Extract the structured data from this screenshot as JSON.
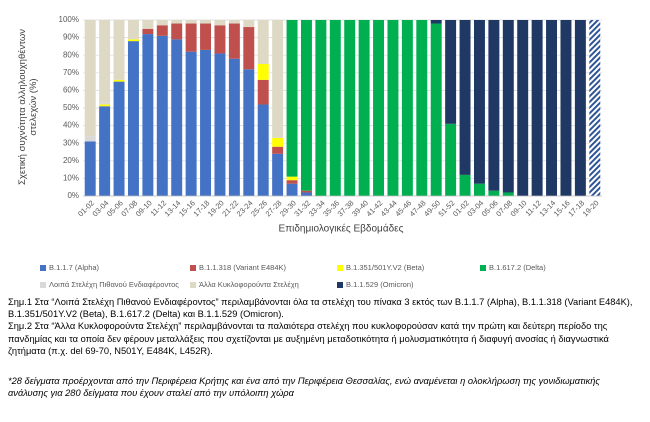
{
  "chart_data": {
    "type": "stacked_bar",
    "y_label": "Σχετική συχνότητα αλληλουχηθέντων στελεχών (%)",
    "x_label": "Επιδημιολογικές Εβδομάδες",
    "categories": [
      "01-02",
      "03-04",
      "05-06",
      "07-08",
      "09-10",
      "11-12",
      "13-14",
      "15-16",
      "17-18",
      "19-20",
      "21-22",
      "23-24",
      "25-26",
      "27-28",
      "29-30",
      "31-32",
      "33-34",
      "35-36",
      "37-38",
      "39-40",
      "41-42",
      "43-44",
      "45-46",
      "47-48",
      "49-50",
      "51-52",
      "01-02",
      "03-04",
      "05-06",
      "07-08",
      "09-10",
      "11-12",
      "13-14",
      "15-16",
      "17-18",
      "19-20"
    ],
    "series": [
      {
        "name": "B.1.1.7 (Alpha)",
        "color": "#4472c4",
        "values": [
          31,
          51,
          65,
          88,
          92,
          91,
          89,
          82,
          83,
          81,
          78,
          72,
          52,
          24,
          7,
          2,
          0,
          0,
          0,
          0,
          0,
          0,
          0,
          0,
          0,
          0,
          0,
          0,
          0,
          0,
          0,
          0,
          0,
          0,
          0,
          0
        ]
      },
      {
        "name": "B.1.1.318 (Variant E484K)",
        "color": "#c0504d",
        "values": [
          0,
          0,
          0,
          0,
          3,
          6,
          9,
          16,
          15,
          16,
          20,
          24,
          14,
          4,
          2,
          1,
          0,
          0,
          0,
          0,
          0,
          0,
          0,
          0,
          0,
          0,
          0,
          0,
          0,
          0,
          0,
          0,
          0,
          0,
          0,
          0
        ]
      },
      {
        "name": "B.1.351/501Y.V2 (Beta)",
        "color": "#ffff00",
        "values": [
          0,
          1,
          1,
          1,
          0,
          0,
          0,
          0,
          0,
          0,
          0,
          0,
          9,
          5,
          2,
          0,
          0,
          0,
          0,
          0,
          0,
          0,
          0,
          0,
          0,
          0,
          0,
          0,
          0,
          0,
          0,
          0,
          0,
          0,
          0,
          0
        ]
      },
      {
        "name": "B.1.617.2 (Delta)",
        "color": "#00b050",
        "values": [
          0,
          0,
          0,
          0,
          0,
          0,
          0,
          0,
          0,
          0,
          0,
          0,
          0,
          0,
          89,
          97,
          100,
          100,
          100,
          100,
          100,
          100,
          100,
          100,
          98,
          41,
          12,
          7,
          3,
          2,
          0,
          0,
          0,
          0,
          0,
          0
        ]
      },
      {
        "name": "Λοιπά Στελέχη Πιθανού Ενδιαφέροντος",
        "color": "#d9d9d9",
        "values": [
          3,
          1,
          0,
          0,
          0,
          0,
          0,
          0,
          0,
          0,
          0,
          0,
          0,
          0,
          0,
          0,
          0,
          0,
          0,
          0,
          0,
          0,
          0,
          0,
          0,
          0,
          0,
          0,
          0,
          0,
          0,
          0,
          0,
          0,
          0,
          0
        ]
      },
      {
        "name": "Άλλα Κυκλοφορούντα Στελέχη",
        "color": "#ddd9c4",
        "values": [
          66,
          47,
          34,
          11,
          5,
          3,
          2,
          2,
          2,
          3,
          2,
          4,
          25,
          67,
          0,
          0,
          0,
          0,
          0,
          0,
          0,
          0,
          0,
          0,
          0,
          0,
          0,
          0,
          0,
          0,
          0,
          0,
          0,
          0,
          0,
          0
        ]
      },
      {
        "name": "B.1.1.529 (Omicron)",
        "color": "#1f3864",
        "values": [
          0,
          0,
          0,
          0,
          0,
          0,
          0,
          0,
          0,
          0,
          0,
          0,
          0,
          0,
          0,
          0,
          0,
          0,
          0,
          0,
          0,
          0,
          0,
          0,
          2,
          59,
          88,
          93,
          97,
          98,
          100,
          100,
          100,
          100,
          100,
          100
        ]
      }
    ],
    "ylim": [
      0,
      100
    ],
    "yticks": [
      {
        "value": 0,
        "label": "0%"
      },
      {
        "value": 10,
        "label": "10%"
      },
      {
        "value": 20,
        "label": "20%"
      },
      {
        "value": 30,
        "label": "30%"
      },
      {
        "value": 40,
        "label": "40%"
      },
      {
        "value": 50,
        "label": "50%"
      },
      {
        "value": 60,
        "label": "60%"
      },
      {
        "value": 70,
        "label": "70%"
      },
      {
        "value": 80,
        "label": "80%"
      },
      {
        "value": 90,
        "label": "90%"
      },
      {
        "value": 100,
        "label": "100%"
      }
    ],
    "grid": true,
    "hatch_last": true,
    "legend": "bottom"
  },
  "notes": [
    "Σημ.1 Στα “Λοιπά Στελέχη Πιθανού Ενδιαφέροντος” περιλαμβάνονται όλα τα στελέχη του πίνακα 3 εκτός των B.1.1.7 (Alpha), B.1.1.318 (Variant E484K), B.1.351/501Y.V2 (Beta), B.1.617.2 (Delta) και B.1.1.529 (Omicron).",
    "Σημ.2 Στα “Άλλα Κυκλοφορούντα Στελέχη” περιλαμβάνονται τα παλαιότερα στελέχη που κυκλοφορούσαν κατά την πρώτη και δεύτερη περίοδο της πανδημίας και τα οποία δεν φέρουν μεταλλάξεις που σχετίζονται με αυξημένη μεταδοτικότητα ή μολυσματικότητα ή διαφυγή ανοσίας ή διαγνωστικά ζητήματα (π.χ. del 69-70, N501Y, E484K, L452R).",
    "*28 δείγματα προέρχονται από την Περιφέρεια Κρήτης και ένα από την Περιφέρεια Θεσσαλίας, ενώ αναμένεται η ολοκλήρωση της γονιδιωματικής ανάλυσης για 280 δείγματα που έχουν σταλεί από την υπόλοιπη χώρα"
  ]
}
